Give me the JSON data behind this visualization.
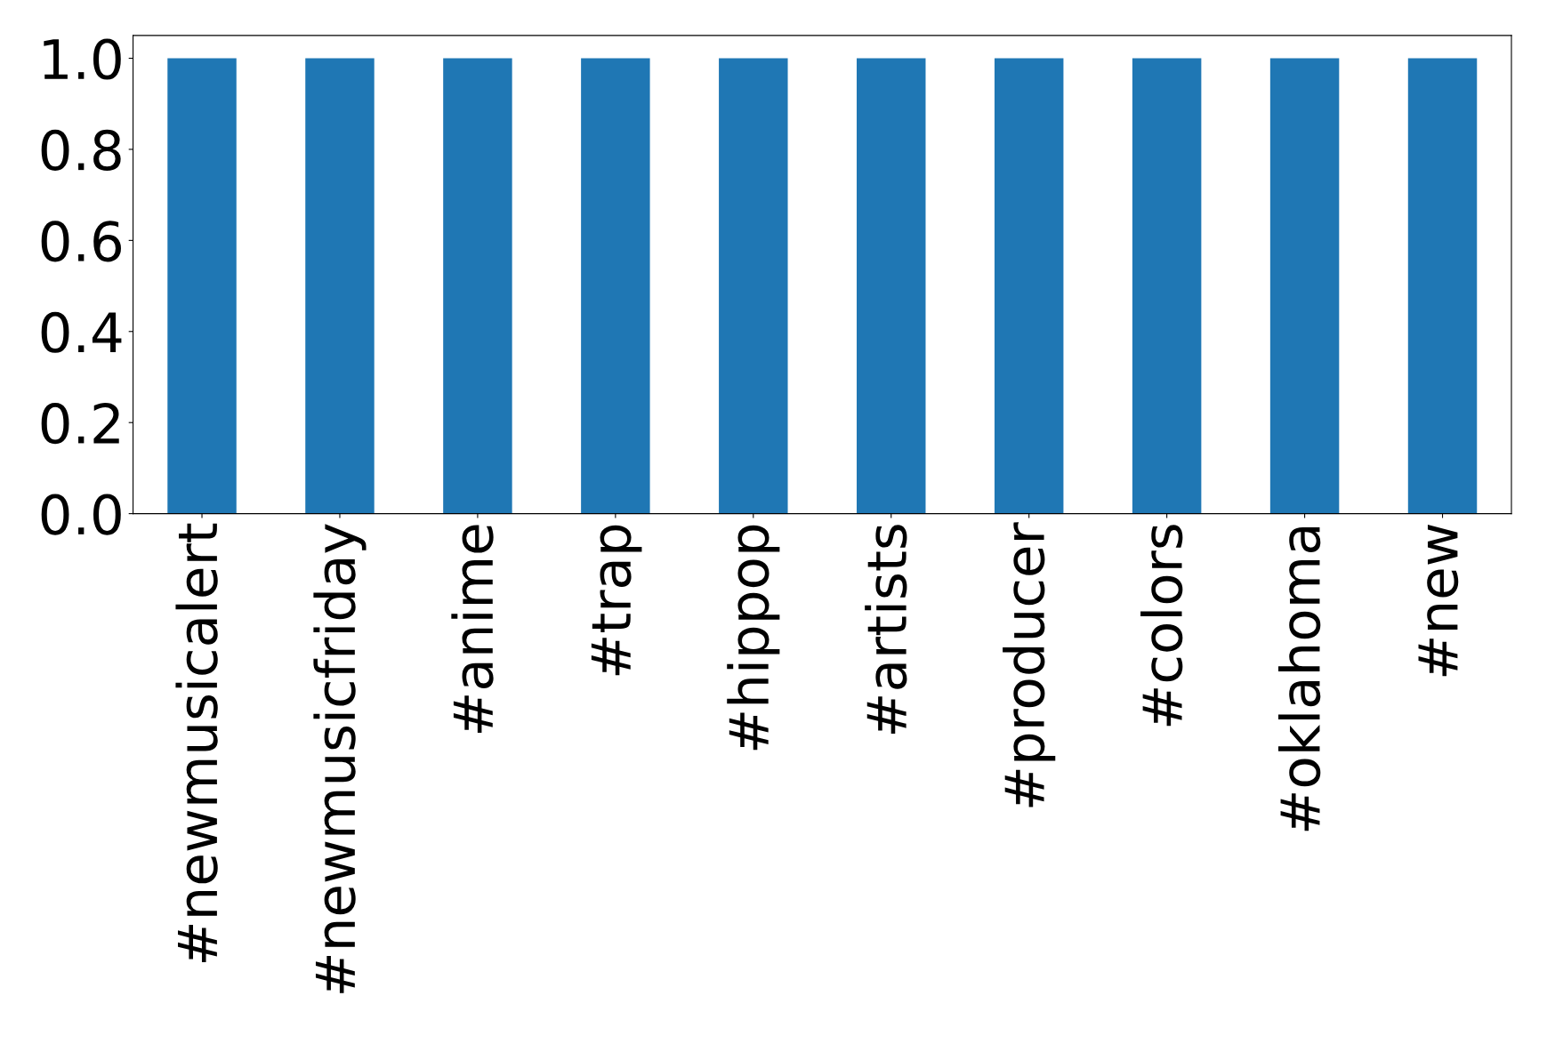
{
  "chart_data": {
    "type": "bar",
    "categories": [
      "#newmusicalert",
      "#newmusicfriday",
      "#anime",
      "#trap",
      "#hippop",
      "#artists",
      "#producer",
      "#colors",
      "#oklahoma",
      "#new"
    ],
    "values": [
      1,
      1,
      1,
      1,
      1,
      1,
      1,
      1,
      1,
      1
    ],
    "color": "#1f77b4",
    "ylim": [
      0,
      1.05
    ],
    "yticks": [
      {
        "value": 0,
        "label": "0.0"
      },
      {
        "value": 0.2,
        "label": "0.2"
      },
      {
        "value": 0.4,
        "label": "0.4"
      },
      {
        "value": 0.6,
        "label": "0.6"
      },
      {
        "value": 0.8,
        "label": "0.8"
      },
      {
        "value": 1.0,
        "label": "1.0"
      }
    ],
    "grid": false,
    "legend": false
  }
}
